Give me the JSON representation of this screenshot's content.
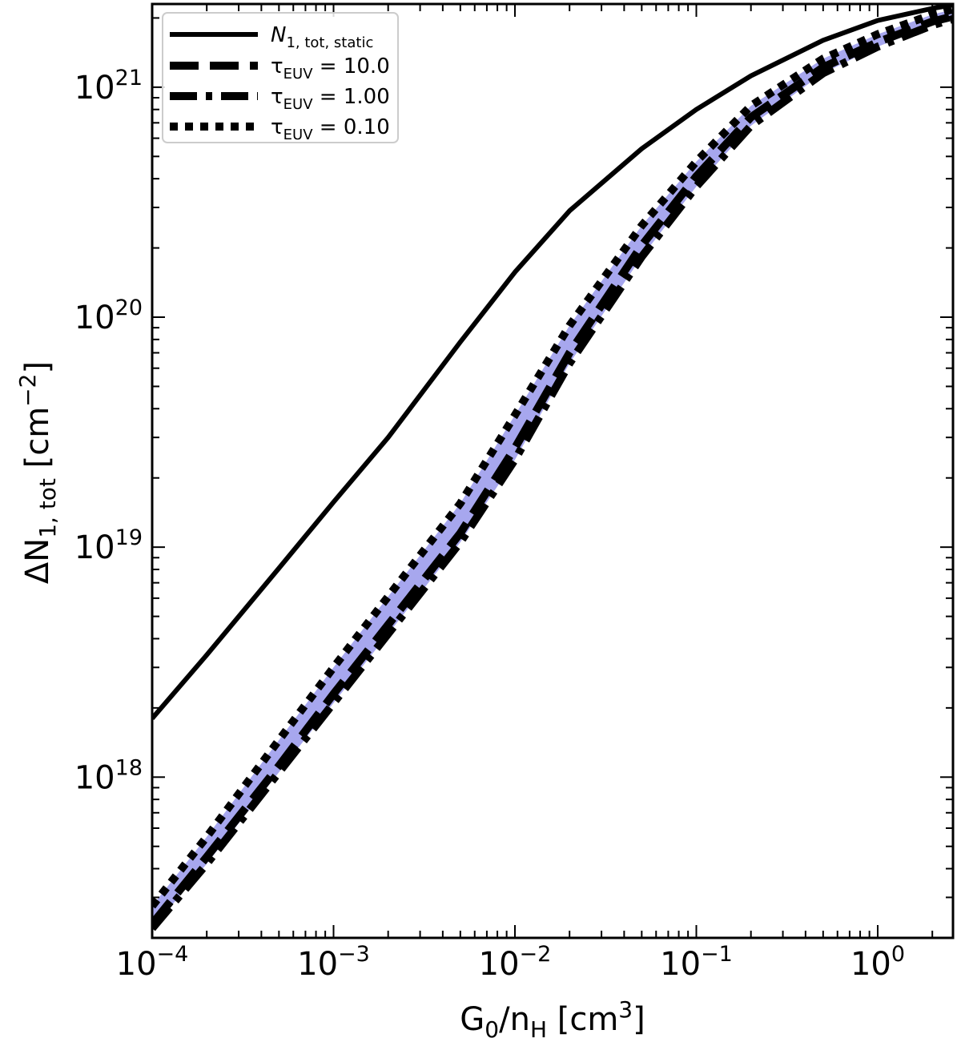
{
  "chart_data": {
    "type": "line",
    "title": "",
    "xlabel": "G₀/nₕ [cm³]",
    "ylabel": "ΔN₁,tot [cm⁻²]",
    "xlabel_parts": {
      "g": "G",
      "g_sub": "0",
      "mid": "/n",
      "n_sub": "H",
      "unit": " [cm",
      "unit_sup": "3",
      "close": "]"
    },
    "ylabel_parts": {
      "delta": "ΔN",
      "sub": "1, tot",
      "unit": " [cm",
      "unit_sup": "−2",
      "close": "]"
    },
    "xscale": "log",
    "yscale": "log",
    "xlim": [
      0.0001,
      2.6
    ],
    "ylim": [
      2e+17,
      2.3e+21
    ],
    "grid": false,
    "legend_position": "top-left",
    "x_ticks": [
      {
        "base": "10",
        "exp": "−4"
      },
      {
        "base": "10",
        "exp": "−3"
      },
      {
        "base": "10",
        "exp": "−2"
      },
      {
        "base": "10",
        "exp": "−1"
      },
      {
        "base": "10",
        "exp": "0"
      }
    ],
    "y_ticks": [
      {
        "base": "10",
        "exp": "18"
      },
      {
        "base": "10",
        "exp": "19"
      },
      {
        "base": "10",
        "exp": "20"
      },
      {
        "base": "10",
        "exp": "21"
      }
    ],
    "x": [
      0.0001,
      0.0002,
      0.0005,
      0.001,
      0.002,
      0.005,
      0.01,
      0.02,
      0.05,
      0.1,
      0.2,
      0.5,
      1,
      2,
      2.6
    ],
    "band_color": "#a7a7ee",
    "band": {
      "lower": [
        2.2e+17,
        4.2e+17,
        1.05e+18,
        2.1e+18,
        4.2e+18,
        1.05e+19,
        2.4e+19,
        6.3e+19,
        1.83e+20,
        3.7e+20,
        6.8e+20,
        1.15e+21,
        1.5e+21,
        1.86e+21,
        1.98e+21
      ],
      "upper": [
        2.75e+17,
        5.5e+17,
        1.45e+18,
        3e+18,
        6.1e+18,
        1.55e+19,
        3.75e+19,
        9.2e+19,
        2.5e+20,
        4.75e+20,
        8.3e+20,
        1.33e+21,
        1.7e+21,
        2.07e+21,
        2.18e+21
      ]
    },
    "series": [
      {
        "name_parts": {
          "main": "N",
          "sub": "1, tot, static",
          "rest": ""
        },
        "style": "solid",
        "values": [
          1.8e+18,
          3.4e+18,
          8.1e+18,
          1.57e+19,
          3e+19,
          7.8e+19,
          1.57e+20,
          2.9e+20,
          5.4e+20,
          8e+20,
          1.12e+21,
          1.6e+21,
          1.95e+21,
          2.2e+21,
          2.28e+21
        ]
      },
      {
        "name_parts": {
          "main": "τ",
          "sub": "EUV",
          "rest": " = 10.0"
        },
        "style": "dashed",
        "values": [
          2.3e+17,
          4.5e+17,
          1.12e+18,
          2.3e+18,
          4.6e+18,
          1.15e+19,
          2.7e+19,
          7e+19,
          2.05e+20,
          4.1e+20,
          7.4e+20,
          1.22e+21,
          1.57e+21,
          1.93e+21,
          2.03e+21
        ]
      },
      {
        "name_parts": {
          "main": "τ",
          "sub": "EUV",
          "rest": " = 1.00"
        },
        "style": "dashdot",
        "values": [
          2.2e+17,
          4.2e+17,
          1.05e+18,
          2.1e+18,
          4.2e+18,
          1.05e+19,
          2.4e+19,
          6.3e+19,
          1.83e+20,
          3.7e+20,
          6.8e+20,
          1.15e+21,
          1.5e+21,
          1.86e+21,
          1.98e+21
        ]
      },
      {
        "name_parts": {
          "main": "τ",
          "sub": "EUV",
          "rest": " = 0.10"
        },
        "style": "dotted",
        "values": [
          2.75e+17,
          5.5e+17,
          1.45e+18,
          3e+18,
          6.1e+18,
          1.55e+19,
          3.75e+19,
          9.2e+19,
          2.5e+20,
          4.75e+20,
          8.3e+20,
          1.33e+21,
          1.7e+21,
          2.07e+21,
          2.18e+21
        ]
      }
    ]
  }
}
